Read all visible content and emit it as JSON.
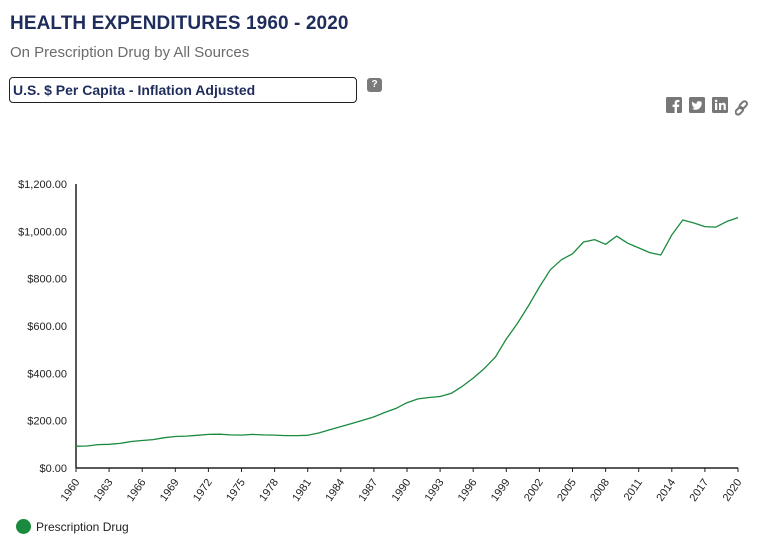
{
  "header": {
    "title": "HEALTH EXPENDITURES 1960 - 2020",
    "subtitle": "On Prescription Drug by All Sources"
  },
  "measure_select": {
    "value": "U.S. $ Per Capita - Inflation Adjusted"
  },
  "help": {
    "label": "?"
  },
  "share": {
    "icons": [
      "facebook-icon",
      "twitter-icon",
      "linkedin-icon",
      "link-icon"
    ]
  },
  "legend": {
    "label": "Prescription Drug",
    "color": "#1a8a3f"
  },
  "chart_data": {
    "type": "line",
    "title": "HEALTH EXPENDITURES 1960 - 2020",
    "xlabel": "",
    "ylabel": "",
    "ylim": [
      0,
      1200
    ],
    "yticks": [
      0,
      200,
      400,
      600,
      800,
      1000,
      1200
    ],
    "ytick_labels": [
      "$0.00",
      "$200.00",
      "$400.00",
      "$600.00",
      "$800.00",
      "$1,000.00",
      "$1,200.00"
    ],
    "xlim": [
      1960,
      2020
    ],
    "xtick_labels": [
      "1960",
      "1963",
      "1966",
      "1969",
      "1972",
      "1975",
      "1978",
      "1981",
      "1984",
      "1987",
      "1990",
      "1993",
      "1996",
      "1999",
      "2002",
      "2005",
      "2008",
      "2011",
      "2014",
      "2017",
      "2020"
    ],
    "series": [
      {
        "name": "Prescription Drug",
        "color": "#1a8a3f",
        "x": [
          1960,
          1961,
          1962,
          1963,
          1964,
          1965,
          1966,
          1967,
          1968,
          1969,
          1970,
          1971,
          1972,
          1973,
          1974,
          1975,
          1976,
          1977,
          1978,
          1979,
          1980,
          1981,
          1982,
          1983,
          1984,
          1985,
          1986,
          1987,
          1988,
          1989,
          1990,
          1991,
          1992,
          1993,
          1994,
          1995,
          1996,
          1997,
          1998,
          1999,
          2000,
          2001,
          2002,
          2003,
          2004,
          2005,
          2006,
          2007,
          2008,
          2009,
          2010,
          2011,
          2012,
          2013,
          2014,
          2015,
          2016,
          2017,
          2018,
          2019,
          2020
        ],
        "values": [
          92,
          93,
          99,
          100,
          104,
          112,
          116,
          120,
          128,
          133,
          135,
          138,
          142,
          143,
          140,
          139,
          142,
          140,
          139,
          137,
          137,
          138,
          148,
          162,
          175,
          188,
          202,
          216,
          235,
          252,
          276,
          292,
          298,
          302,
          315,
          345,
          380,
          420,
          468,
          545,
          610,
          685,
          765,
          838,
          880,
          905,
          955,
          965,
          945,
          980,
          950,
          930,
          910,
          900,
          985,
          1048,
          1035,
          1020,
          1018,
          1042,
          1058
        ]
      }
    ]
  }
}
